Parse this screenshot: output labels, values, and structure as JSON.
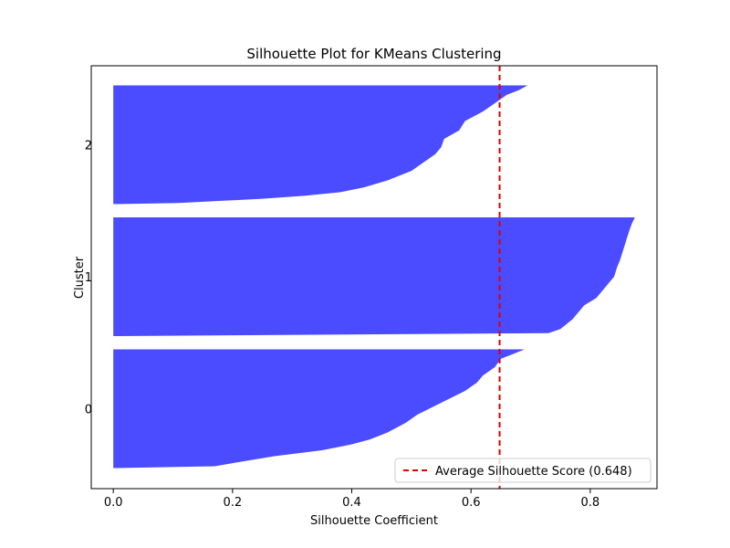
{
  "chart_data": {
    "type": "area",
    "title": "Silhouette Plot for KMeans Clustering",
    "xlabel": "Silhouette Coefficient",
    "ylabel": "Cluster",
    "xlim": [
      -0.037,
      0.912
    ],
    "x_ticks": [
      "0.0",
      "0.2",
      "0.4",
      "0.6",
      "0.8"
    ],
    "x_tick_values": [
      0.0,
      0.2,
      0.4,
      0.6,
      0.8
    ],
    "grid": false,
    "legend_position": "lower-right",
    "bar_color": "#4b4bff",
    "clusters": [
      {
        "label": "0",
        "profile": [
          [
            0.0,
            0.69
          ],
          [
            0.04,
            0.67
          ],
          [
            0.08,
            0.65
          ],
          [
            0.15,
            0.64
          ],
          [
            0.22,
            0.62
          ],
          [
            0.28,
            0.61
          ],
          [
            0.35,
            0.59
          ],
          [
            0.4,
            0.57
          ],
          [
            0.45,
            0.55
          ],
          [
            0.5,
            0.53
          ],
          [
            0.55,
            0.51
          ],
          [
            0.62,
            0.49
          ],
          [
            0.7,
            0.46
          ],
          [
            0.76,
            0.43
          ],
          [
            0.8,
            0.4
          ],
          [
            0.85,
            0.35
          ],
          [
            0.9,
            0.27
          ],
          [
            0.95,
            0.21
          ],
          [
            0.985,
            0.17
          ],
          [
            1.0,
            0.0
          ]
        ]
      },
      {
        "label": "1",
        "profile": [
          [
            0.0,
            0.875
          ],
          [
            0.05,
            0.87
          ],
          [
            0.12,
            0.865
          ],
          [
            0.2,
            0.86
          ],
          [
            0.28,
            0.855
          ],
          [
            0.36,
            0.85
          ],
          [
            0.42,
            0.845
          ],
          [
            0.5,
            0.84
          ],
          [
            0.56,
            0.83
          ],
          [
            0.62,
            0.82
          ],
          [
            0.68,
            0.81
          ],
          [
            0.74,
            0.79
          ],
          [
            0.8,
            0.78
          ],
          [
            0.86,
            0.77
          ],
          [
            0.9,
            0.76
          ],
          [
            0.94,
            0.75
          ],
          [
            0.975,
            0.73
          ],
          [
            1.0,
            0.0
          ]
        ]
      },
      {
        "label": "2",
        "profile": [
          [
            0.0,
            0.695
          ],
          [
            0.04,
            0.68
          ],
          [
            0.08,
            0.66
          ],
          [
            0.15,
            0.64
          ],
          [
            0.22,
            0.62
          ],
          [
            0.3,
            0.59
          ],
          [
            0.38,
            0.58
          ],
          [
            0.45,
            0.555
          ],
          [
            0.52,
            0.55
          ],
          [
            0.58,
            0.54
          ],
          [
            0.65,
            0.52
          ],
          [
            0.72,
            0.5
          ],
          [
            0.8,
            0.46
          ],
          [
            0.86,
            0.42
          ],
          [
            0.9,
            0.38
          ],
          [
            0.93,
            0.32
          ],
          [
            0.955,
            0.25
          ],
          [
            0.975,
            0.17
          ],
          [
            0.99,
            0.11
          ],
          [
            1.0,
            0.0
          ]
        ]
      }
    ],
    "average_line": {
      "value": 0.648,
      "color": "#e00000",
      "legend_label": "Average Silhouette Score (0.648)"
    }
  }
}
